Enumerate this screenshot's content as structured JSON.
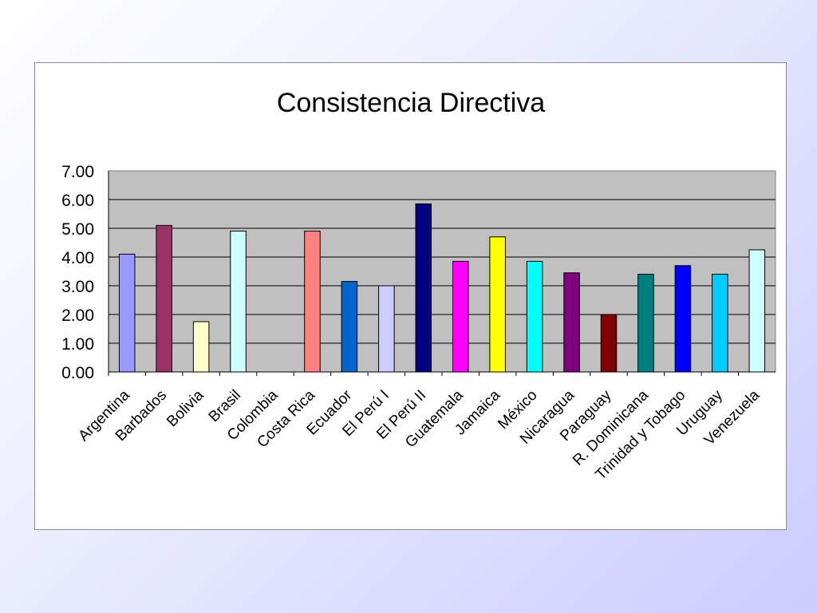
{
  "chart_data": {
    "type": "bar",
    "title": "Consistencia Directiva",
    "xlabel": "",
    "ylabel": "",
    "ylim": [
      0,
      7
    ],
    "yticks": [
      "0.00",
      "1.00",
      "2.00",
      "3.00",
      "4.00",
      "5.00",
      "6.00",
      "7.00"
    ],
    "grid": true,
    "legend": "none",
    "plot_background": "#c0c0c0",
    "categories": [
      "Argentina",
      "Barbados",
      "Bolivia",
      "Brasil",
      "Colombia",
      "Costa Rica",
      "Ecuador",
      "El Perú I",
      "El Perú II",
      "Guatemala",
      "Jamaica",
      "México",
      "Nicaragua",
      "Paraguay",
      "R. Dominicana",
      "Trinidad y Tobago",
      "Uruguay",
      "Venezuela"
    ],
    "values": [
      4.1,
      5.1,
      1.75,
      4.9,
      0,
      4.9,
      3.15,
      3.0,
      5.85,
      3.85,
      4.7,
      3.85,
      3.45,
      2.0,
      3.4,
      3.7,
      3.4,
      4.25
    ],
    "colors": [
      "#9999ff",
      "#993366",
      "#ffffcc",
      "#ccffff",
      "#660066",
      "#ff8080",
      "#0066cc",
      "#ccccff",
      "#000080",
      "#ff00ff",
      "#ffff00",
      "#00ffff",
      "#800080",
      "#800000",
      "#008080",
      "#0000ff",
      "#00ccff",
      "#ccffff"
    ]
  }
}
